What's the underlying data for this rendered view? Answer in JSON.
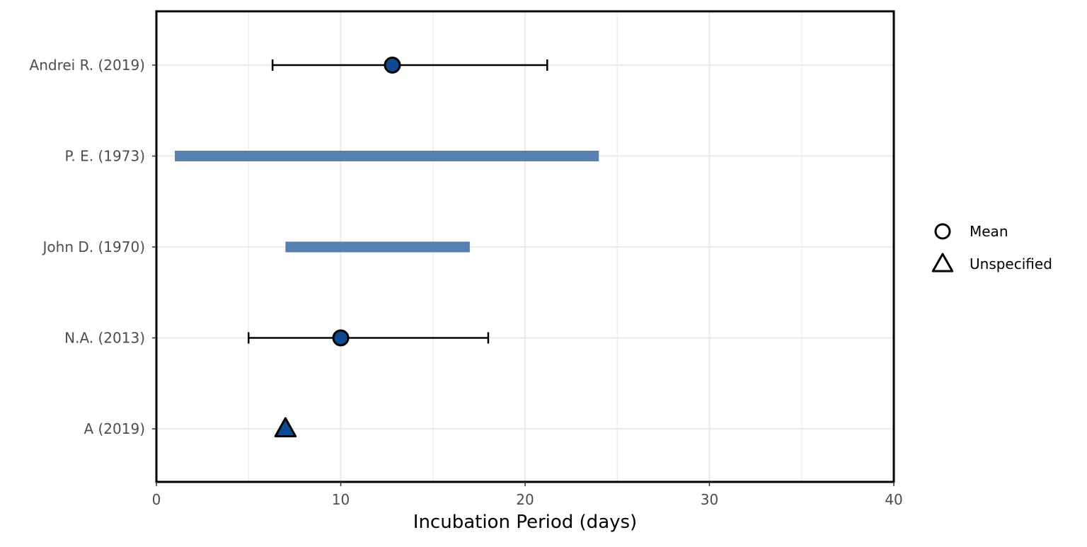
{
  "chart_data": {
    "type": "forest",
    "xlabel": "Incubation Period (days)",
    "ylabel": "",
    "title": "",
    "xlim": [
      0,
      40
    ],
    "x_ticks": [
      0,
      10,
      20,
      30,
      40
    ],
    "x_tick_labels": [
      "0",
      "10",
      "20",
      "30",
      "40"
    ],
    "grid": true,
    "legend_position": "right",
    "categories": [
      "Andrei R. (2019)",
      "P. E. (1973)",
      "John D. (1970)",
      "N.A. (2013)",
      "A (2019)"
    ],
    "studies": [
      {
        "label": "Andrei R. (2019)",
        "estimate": 12.8,
        "estimate_type": "Mean",
        "error_low": 6.3,
        "error_high": 21.2
      },
      {
        "label": "P. E. (1973)",
        "range_low": 1,
        "range_high": 24
      },
      {
        "label": "John D. (1970)",
        "range_low": 7,
        "range_high": 17
      },
      {
        "label": "N.A. (2013)",
        "estimate": 10,
        "estimate_type": "Mean",
        "error_low": 5,
        "error_high": 18
      },
      {
        "label": "A (2019)",
        "estimate": 7,
        "estimate_type": "Unspecified"
      }
    ],
    "legend": [
      {
        "label": "Mean",
        "shape": "circle"
      },
      {
        "label": "Unspecified",
        "shape": "triangle"
      }
    ],
    "colors": {
      "marker_fill": "#0d4a8f",
      "range_bar": "#5580b0",
      "error_bar": "#000000",
      "grid": "#ebebeb",
      "frame": "#000000",
      "tick_label": "#4d4d4d"
    }
  }
}
